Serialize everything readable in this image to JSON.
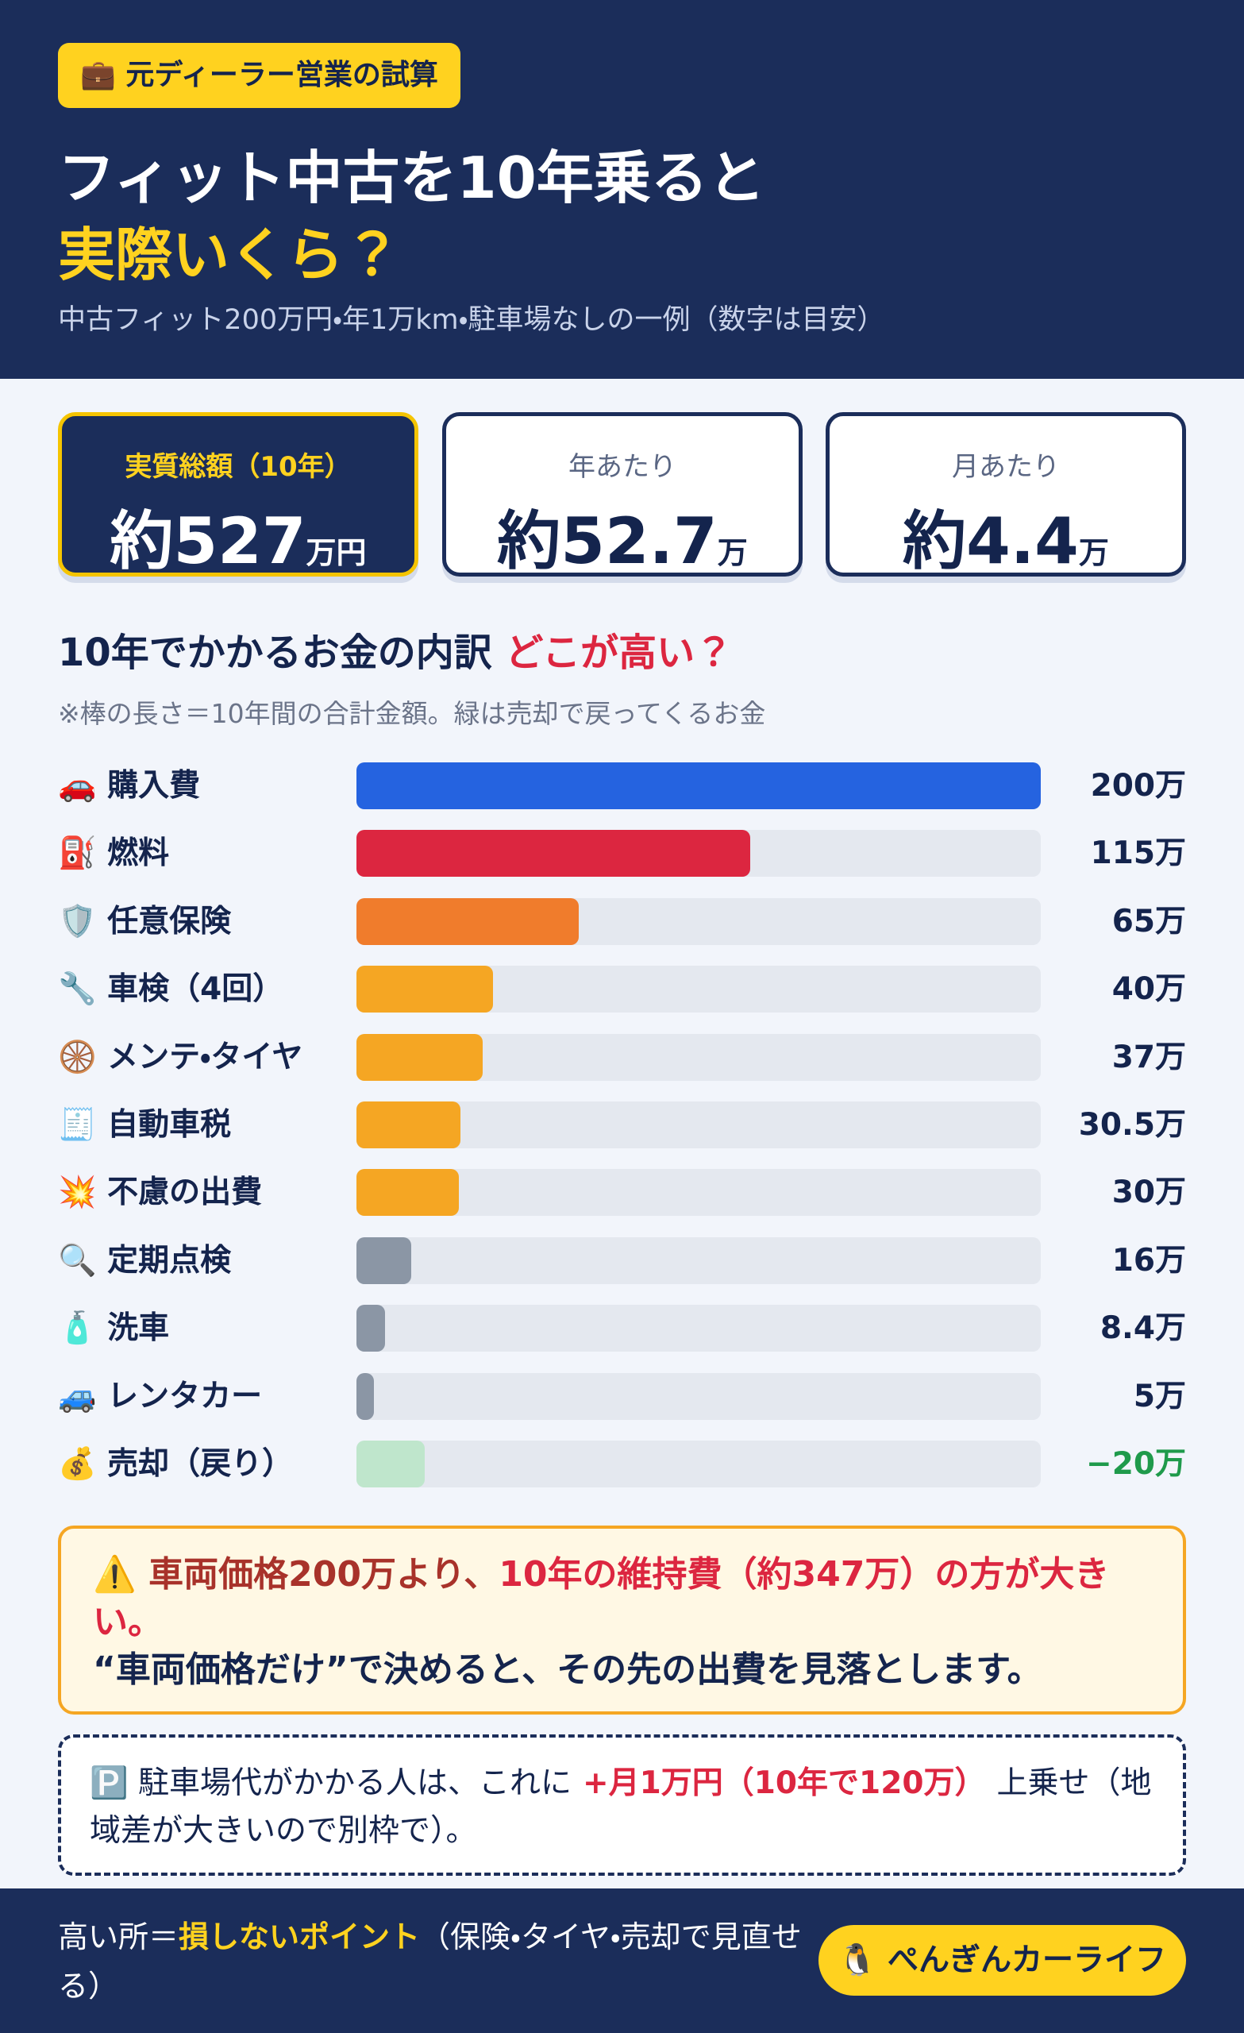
{
  "header": {
    "badge": "💼 元ディーラー営業の試算",
    "title_line1": "フィット中古を10年乗ると",
    "title_line2": "実際いくら？",
    "subtitle": "中古フィット200万円・年1万km・駐車場なしの一例（数字は目安）"
  },
  "cards": [
    {
      "label": "実質総額（10年）",
      "prefix": "約",
      "value": "527",
      "unit": "万円"
    },
    {
      "label": "年あたり",
      "prefix": "約",
      "value": "52.7",
      "unit": "万"
    },
    {
      "label": "月あたり",
      "prefix": "約",
      "value": "4.4",
      "unit": "万"
    }
  ],
  "chart_data": {
    "type": "bar",
    "orientation": "horizontal",
    "title": "10年でかかるお金の内訳",
    "title_highlight": "どこが高い？",
    "note": "※棒の長さ＝10年間の合計金額。緑は売却で戻ってくるお金",
    "categories": [
      "🚗 購入費",
      "⛽ 燃料",
      "🛡️ 任意保険",
      "🔧 車検（4回）",
      "🛞 メンテ・タイヤ",
      "🧾 自動車税",
      "💥 不慮の出費",
      "🔍 定期点検",
      "🧴 洗車",
      "🚙 レンタカー",
      "💰 売却（戻り）"
    ],
    "values": [
      200,
      115,
      65,
      40,
      37,
      30.5,
      30,
      16,
      8.4,
      5,
      -20
    ],
    "value_labels": [
      "200万",
      "115万",
      "65万",
      "40万",
      "37万",
      "30.5万",
      "30万",
      "16万",
      "8.4万",
      "5万",
      "−20万"
    ],
    "colors": [
      "#2563e0",
      "#dc2640",
      "#f07c2c",
      "#f5a623",
      "#f5a623",
      "#f5a623",
      "#f5a623",
      "#8b96a5",
      "#8b96a5",
      "#8b96a5",
      "#bfe6cc"
    ],
    "xlim": [
      0,
      200
    ]
  },
  "warning": {
    "lead": "⚠️ 車両価格200万より、",
    "highlight": "10年の維持費（約347万）の方が大きい。",
    "line2": "“車両価格だけ”で決めると、その先の出費を見落とします。"
  },
  "parking": {
    "lead": "🅿️ 駐車場代がかかる人は、これに",
    "highlight": "+月1万円（10年で120万）",
    "tail": "上乗せ（地域差が大きいので別枠で）。"
  },
  "footer": {
    "lead": "高い所＝",
    "highlight": "損しないポイント",
    "tail": "（保険・タイヤ・売却で見直せる）",
    "button": "🐧 ぺんぎんカーライフ"
  }
}
